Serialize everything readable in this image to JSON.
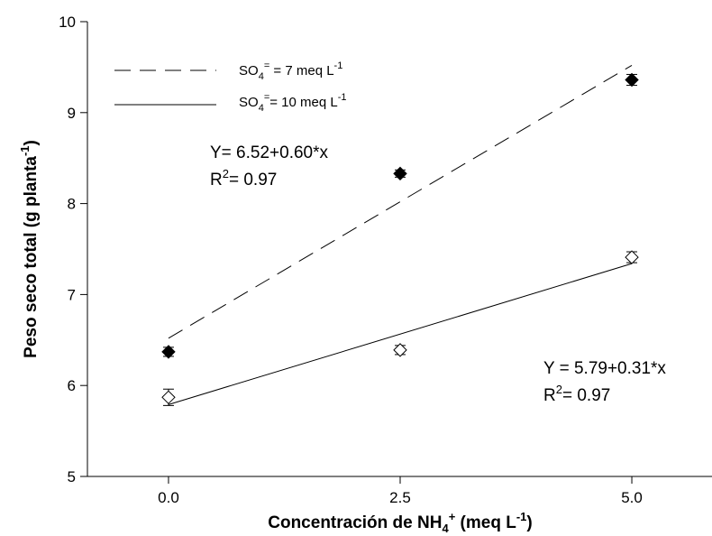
{
  "chart_data": {
    "type": "scatter",
    "xlabel": "Concentración de NH4+ (meq L-1)",
    "ylabel": "Peso seco total (g planta-1)",
    "xlim": [
      -0.875,
      5.875
    ],
    "ylim": [
      5,
      10
    ],
    "x_ticks": [
      "0.0",
      "2.5",
      "5.0"
    ],
    "y_ticks": [
      "5",
      "6",
      "7",
      "8",
      "9",
      "10"
    ],
    "grid": false,
    "legend_position": "top-left",
    "series": [
      {
        "name": "SO4= = 7 meq L-1",
        "marker": "filled-diamond",
        "line_style": "dashed",
        "x": [
          0.0,
          2.5,
          5.0
        ],
        "y": [
          6.37,
          8.33,
          9.36
        ],
        "error": [
          0.05,
          0.04,
          0.06
        ],
        "fit": {
          "intercept": 6.52,
          "slope": 0.6
        }
      },
      {
        "name": "SO4= = 10 meq L-1",
        "marker": "open-diamond",
        "line_style": "solid",
        "x": [
          0.0,
          2.5,
          5.0
        ],
        "y": [
          5.87,
          6.39,
          7.41
        ],
        "error": [
          0.09,
          0.05,
          0.06
        ],
        "fit": {
          "intercept": 5.79,
          "slope": 0.31
        }
      }
    ],
    "legend": [
      {
        "prefix": "SO",
        "sub": "4",
        "sup": "=",
        "mid": " = 7 meq L",
        "sup2": "-1"
      },
      {
        "prefix": "SO",
        "sub": "4",
        "sup": "=",
        "mid": "= 10 meq L",
        "sup2": "-1"
      }
    ],
    "annotations": [
      {
        "line1": "Y= 6.52+0.60*x",
        "r2_prefix": "R",
        "r2_sup": "2",
        "r2_value": "= 0.97"
      },
      {
        "line1": "Y = 5.79+0.31*x",
        "r2_prefix": "R",
        "r2_sup": "2",
        "r2_value": "= 0.97"
      }
    ],
    "x_title": {
      "text": "Concentración de NH",
      "sub": "4",
      "sup": "+",
      "rest": " (meq L",
      "sup2": "-1",
      "end": ")"
    },
    "y_title": {
      "text": "Peso seco total (g planta",
      "sup": "-1",
      "end": ")"
    }
  }
}
